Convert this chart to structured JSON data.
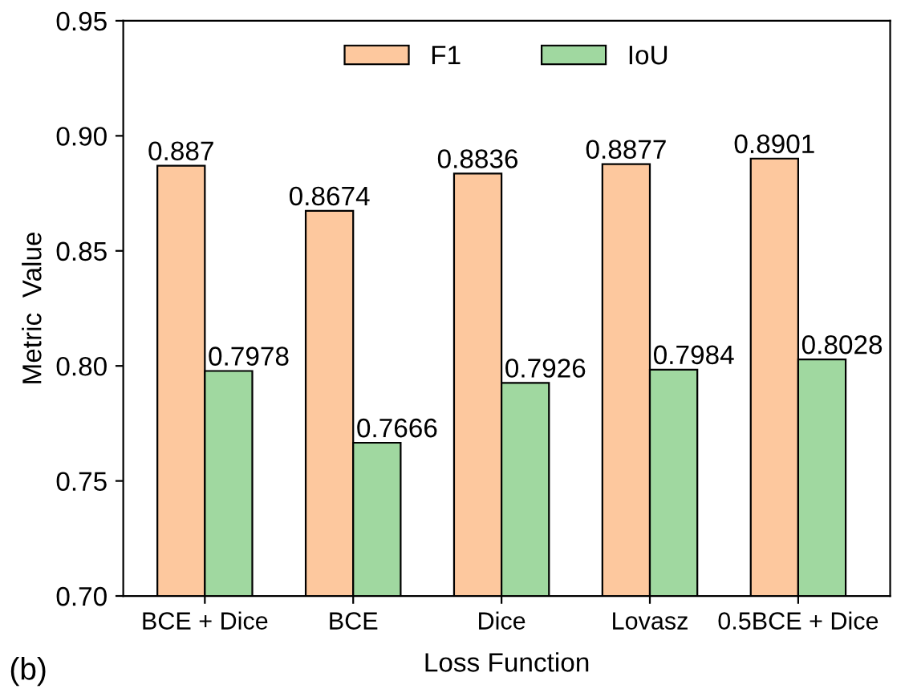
{
  "chart_data": {
    "type": "bar",
    "xlabel": "Loss Function",
    "ylabel": "Metric  Value",
    "categories": [
      "BCE + Dice",
      "BCE",
      "Dice",
      "Lovasz",
      "0.5BCE + Dice"
    ],
    "series": [
      {
        "name": "F1",
        "color": "#fdc89e",
        "values": [
          0.887,
          0.8674,
          0.8836,
          0.8877,
          0.8901
        ]
      },
      {
        "name": "IoU",
        "color": "#a0d8a0",
        "values": [
          0.7978,
          0.7666,
          0.7926,
          0.7984,
          0.8028
        ]
      }
    ],
    "ylim": [
      0.7,
      0.95
    ],
    "yticks": [
      {
        "value": 0.7,
        "label": "0.70"
      },
      {
        "value": 0.75,
        "label": "0.75"
      },
      {
        "value": 0.8,
        "label": "0.80"
      },
      {
        "value": 0.85,
        "label": "0.85"
      },
      {
        "value": 0.9,
        "label": "0.90"
      },
      {
        "value": 0.95,
        "label": "0.95"
      }
    ],
    "data_labels": true,
    "legend": "top",
    "grid": false,
    "annotations": [
      "(b)"
    ]
  }
}
